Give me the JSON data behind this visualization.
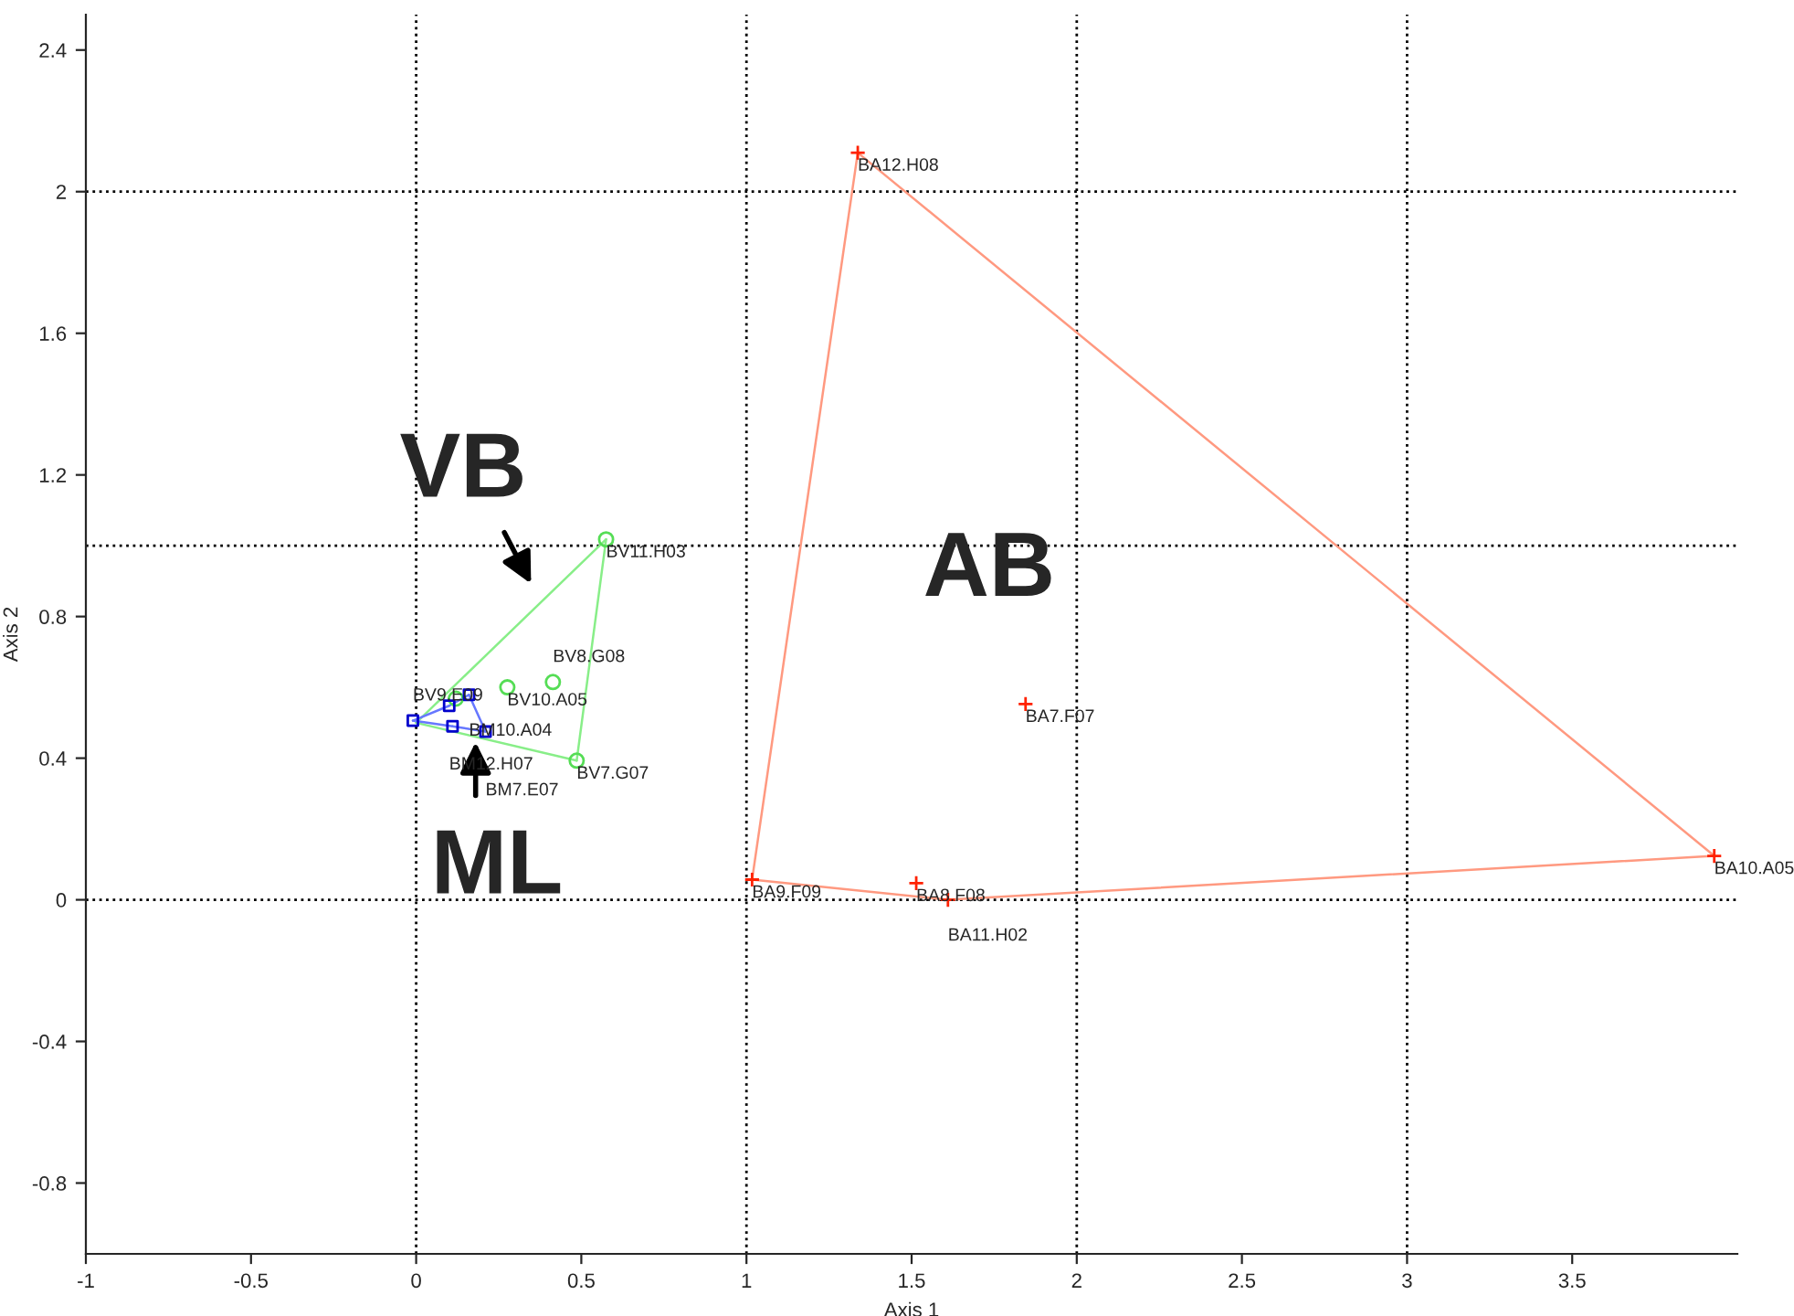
{
  "chart_data": {
    "type": "scatter",
    "xlabel": "Axis 1",
    "ylabel": "Axis 2",
    "xlim": [
      -1,
      4
    ],
    "ylim": [
      -1,
      2.5
    ],
    "xticks": [
      -1,
      -0.5,
      0,
      0.5,
      1,
      1.5,
      2,
      2.5,
      3,
      3.5
    ],
    "yticks": [
      -0.8,
      -0.4,
      0,
      0.4,
      0.8,
      1.2,
      1.6,
      2,
      2.4
    ],
    "grid": false,
    "series": [
      {
        "type": "line",
        "color": "#ff9980",
        "x": [
          1.337,
          3.93
        ],
        "values": [
          2.11,
          0.124
        ]
      },
      {
        "type": "line",
        "color": "#ff9980",
        "x": [
          1.61,
          3.93
        ],
        "values": [
          0.0,
          0.124
        ]
      },
      {
        "type": "line",
        "color": "#ff9980",
        "x": [
          1.017,
          1.61
        ],
        "values": [
          0.057,
          0.0
        ]
      },
      {
        "type": "line",
        "color": "#ff9980",
        "x": [
          1.017,
          1.337
        ],
        "values": [
          0.057,
          2.11
        ]
      },
      {
        "type": "line",
        "color": "#88ee88",
        "x": [
          0.0,
          0.575
        ],
        "values": [
          0.5,
          1.018
        ]
      },
      {
        "type": "line",
        "color": "#88ee88",
        "x": [
          0.486,
          0.575
        ],
        "values": [
          0.393,
          1.018
        ]
      },
      {
        "type": "line",
        "color": "#88ee88",
        "x": [
          0.0,
          0.486
        ],
        "values": [
          0.5,
          0.393
        ]
      },
      {
        "type": "line",
        "color": "#6677ff",
        "x": [
          -0.01,
          0.1
        ],
        "values": [
          0.506,
          0.548
        ]
      },
      {
        "type": "line",
        "color": "#6677ff",
        "x": [
          0.1,
          0.16
        ],
        "values": [
          0.548,
          0.579
        ]
      },
      {
        "type": "line",
        "color": "#6677ff",
        "x": [
          0.16,
          0.21
        ],
        "values": [
          0.579,
          0.475
        ]
      },
      {
        "type": "line",
        "color": "#6677ff",
        "x": [
          0.11,
          0.21
        ],
        "values": [
          0.49,
          0.475
        ]
      },
      {
        "type": "line",
        "color": "#6677ff",
        "x": [
          -0.01,
          0.11
        ],
        "values": [
          0.506,
          0.49
        ]
      },
      {
        "color": "#ff2200",
        "marker": "cross",
        "x": [
          1.337,
          1.845,
          3.93,
          1.017,
          1.514,
          1.61
        ],
        "values": [
          2.11,
          0.553,
          0.124,
          0.057,
          0.047,
          0.0
        ]
      },
      {
        "color": "#55dd55",
        "marker": "circle",
        "x": [
          0.575,
          0.486,
          0.276,
          0.414,
          0.12
        ],
        "values": [
          1.018,
          0.393,
          0.6,
          0.615,
          0.568
        ]
      },
      {
        "color": "#0000cc",
        "marker": "square",
        "x": [
          -0.01,
          0.1,
          0.16,
          0.21,
          0.11
        ],
        "values": [
          0.506,
          0.548,
          0.579,
          0.475,
          0.49
        ]
      }
    ],
    "ref_lines": [
      {
        "axis": "x",
        "value": 0,
        "color": "#000000",
        "line_style": "dotted"
      },
      {
        "axis": "x",
        "value": 1,
        "color": "#000000",
        "line_style": "dotted"
      },
      {
        "axis": "x",
        "value": 2,
        "color": "#000000",
        "line_style": "dotted"
      },
      {
        "axis": "x",
        "value": 3,
        "color": "#000000",
        "line_style": "dotted"
      },
      {
        "axis": "y",
        "value": 0,
        "color": "#000000",
        "line_style": "dotted"
      },
      {
        "axis": "y",
        "value": 1,
        "color": "#000000",
        "line_style": "dotted"
      },
      {
        "axis": "y",
        "value": 2,
        "color": "#000000",
        "line_style": "dotted"
      }
    ],
    "annotations": [
      {
        "text": "BA12.H08",
        "x": 1.337,
        "y": 2.11
      },
      {
        "text": "BA7.F07",
        "x": 1.845,
        "y": 0.553
      },
      {
        "text": "BA10.A05",
        "x": 3.93,
        "y": 0.124
      },
      {
        "text": "BA9.F09",
        "x": 1.017,
        "y": 0.057
      },
      {
        "text": "BA8.F08",
        "x": 1.514,
        "y": 0.047
      },
      {
        "text": "BA11.H02",
        "x": 1.61,
        "y": 0.0
      },
      {
        "text": "BV11.H03",
        "x": 0.575,
        "y": 1.018
      },
      {
        "text": "BV7.G07",
        "x": 0.486,
        "y": 0.393
      },
      {
        "text": "BV10.A05",
        "x": 0.276,
        "y": 0.6
      },
      {
        "text": "BV8.G08",
        "x": 0.414,
        "y": 0.615
      },
      {
        "text": "BM10.A04",
        "x": 0.16,
        "y": 0.579
      },
      {
        "text": "BM12.H07",
        "x": 0.1,
        "y": 0.548
      },
      {
        "text": "BV9.E09",
        "x": -0.01,
        "y": 0.506
      },
      {
        "text": "BM7.E07",
        "x": 0.21,
        "y": 0.475
      },
      "VB",
      "AB",
      "ML"
    ]
  }
}
